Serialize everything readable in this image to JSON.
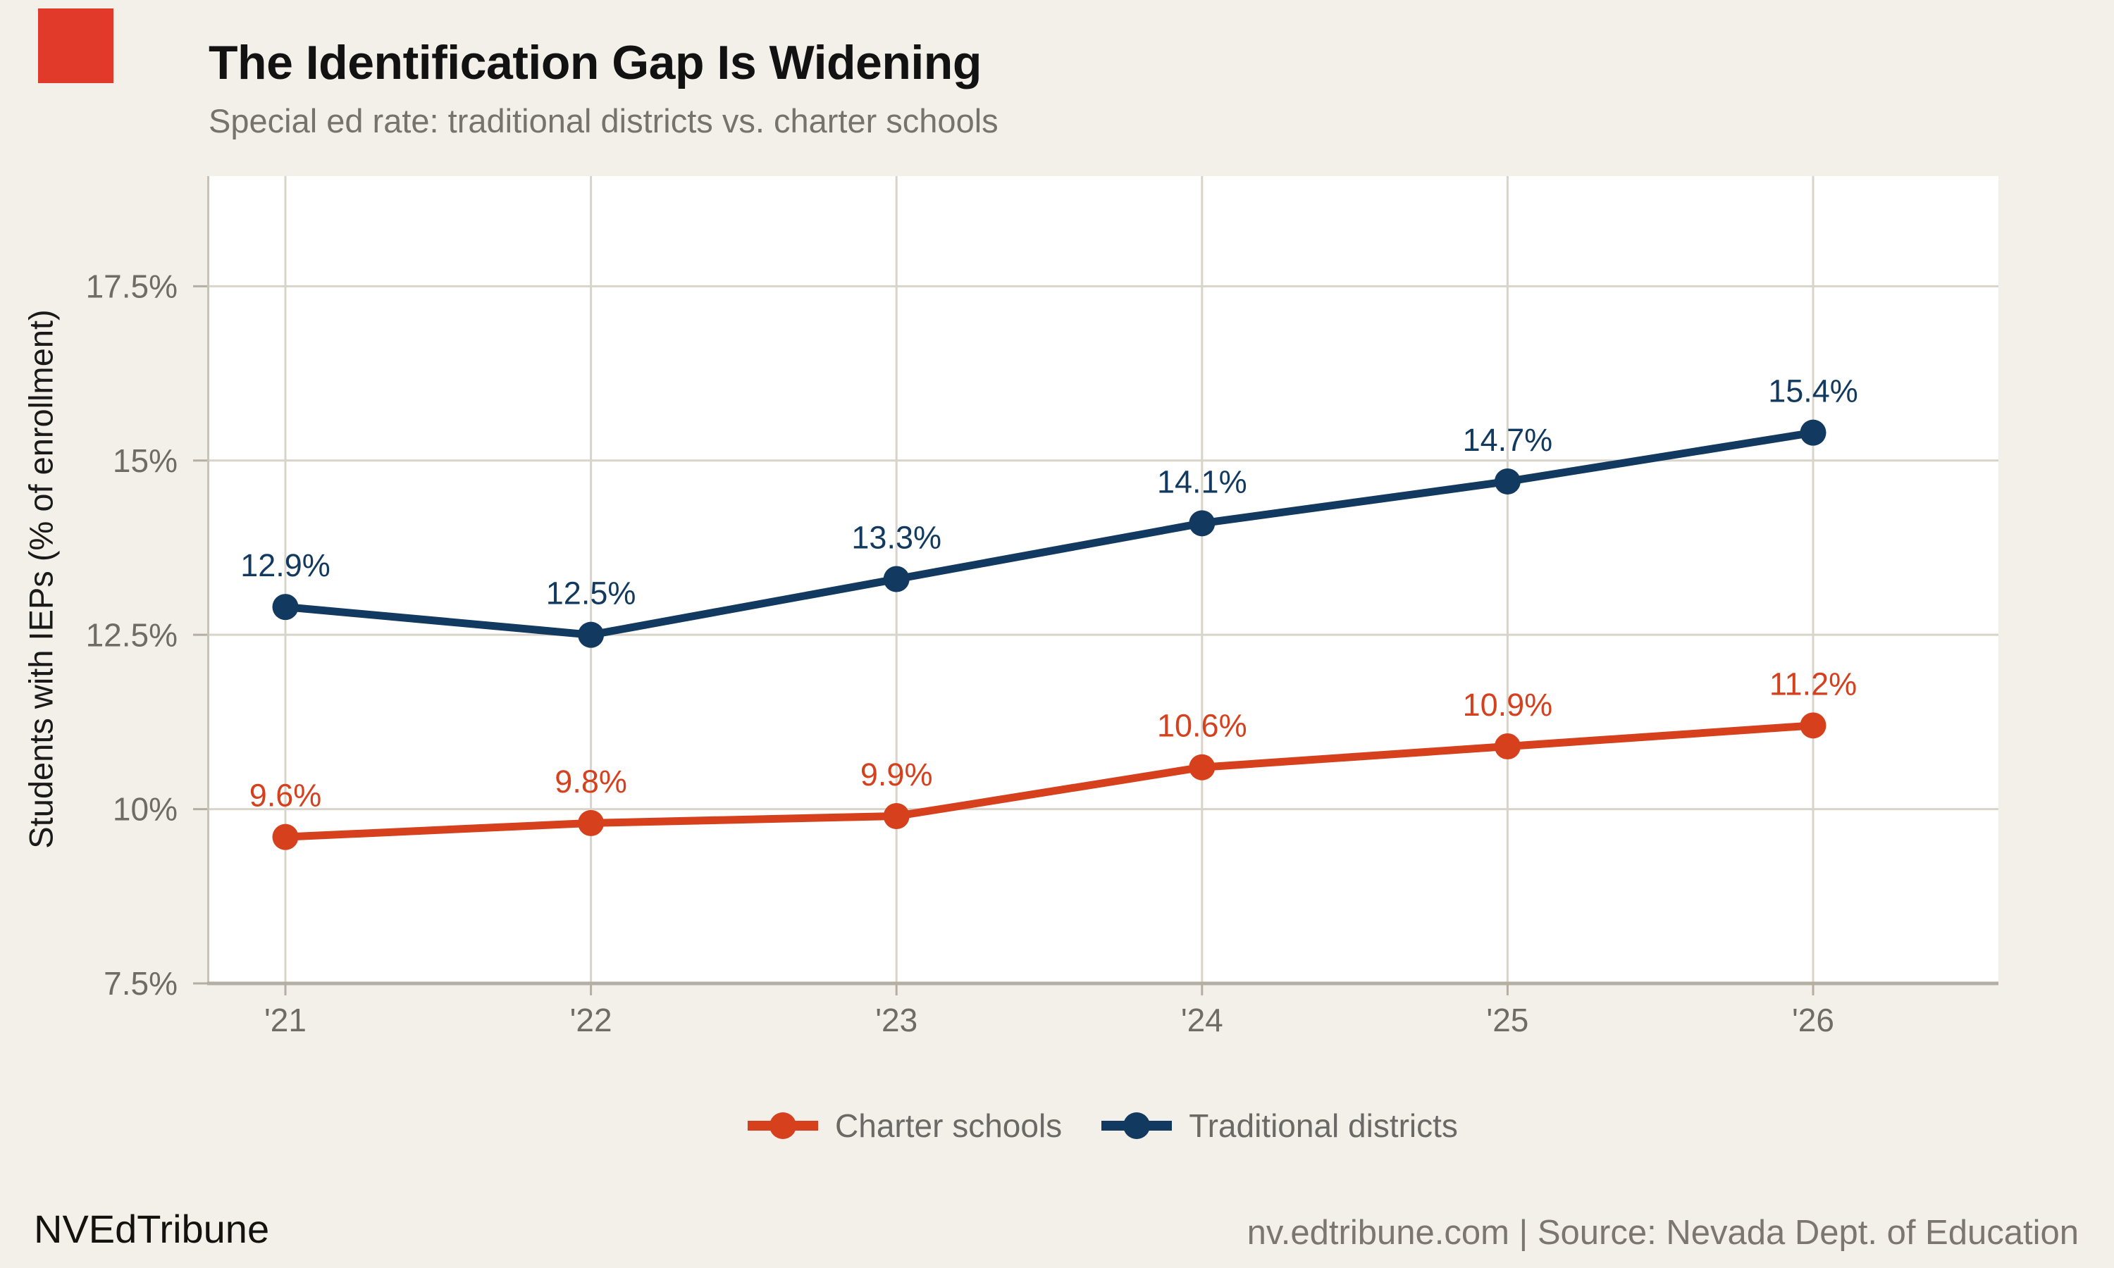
{
  "brand": {
    "logo_color": "#e13a2b"
  },
  "header": {
    "title": "The Identification Gap Is Widening",
    "subtitle": "Special ed rate: traditional districts vs. charter schools"
  },
  "chart_data": {
    "type": "line",
    "title": "The Identification Gap Is Widening",
    "subtitle": "Special ed rate: traditional districts vs. charter schools",
    "categories": [
      "'21",
      "'22",
      "'23",
      "'24",
      "'25",
      "'26"
    ],
    "series": [
      {
        "name": "Charter schools",
        "color": "#d6401d",
        "values": [
          9.6,
          9.8,
          9.9,
          10.6,
          10.9,
          11.2
        ],
        "point_labels": [
          "9.6%",
          "9.8%",
          "9.9%",
          "10.6%",
          "10.9%",
          "11.2%"
        ]
      },
      {
        "name": "Traditional districts",
        "color": "#12395f",
        "values": [
          12.9,
          12.5,
          13.3,
          14.1,
          14.7,
          15.4
        ],
        "point_labels": [
          "12.9%",
          "12.5%",
          "13.3%",
          "14.1%",
          "14.7%",
          "15.4%"
        ]
      }
    ],
    "xlabel": "",
    "ylabel": "Students with IEPs (% of enrollment)",
    "ylim": [
      7.5,
      19.08
    ],
    "y_ticks": [
      {
        "value": 17.5,
        "label": "17.5%"
      },
      {
        "value": 15.0,
        "label": "15%"
      },
      {
        "value": 12.5,
        "label": "12.5%"
      },
      {
        "value": 10.0,
        "label": "10%"
      },
      {
        "value": 7.5,
        "label": "7.5%"
      }
    ],
    "grid": true,
    "legend_position": "bottom-center",
    "colors": {
      "panel_background": "#ffffff",
      "page_background": "#f3f0e9",
      "gridline": "#d9d4ca",
      "axis_line": "#b5aea3",
      "panel_border": "#c8c3b9",
      "tick_label": "#6f6c66"
    }
  },
  "footer": {
    "brand": "NVEdTribune",
    "source": "nv.edtribune.com | Source: Nevada Dept. of Education"
  }
}
